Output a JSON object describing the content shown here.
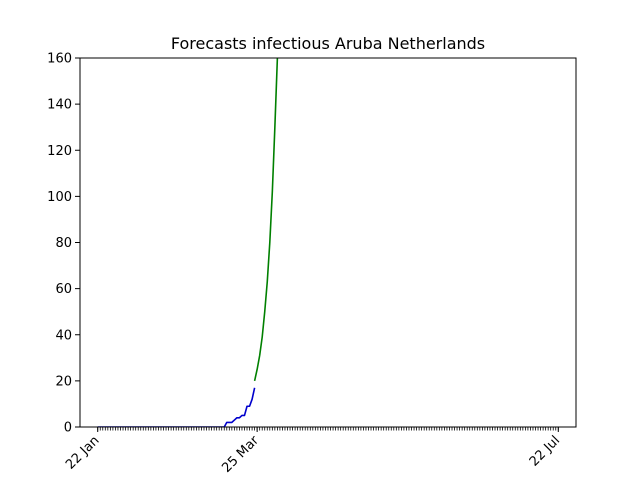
{
  "chart_data": {
    "type": "line",
    "title": "Forecasts infectious Aruba Netherlands",
    "xlabel": "",
    "ylabel": "",
    "x_range": [
      "2020-01-15",
      "2020-07-29"
    ],
    "ylim": [
      0,
      160
    ],
    "y_ticks": [
      0,
      20,
      40,
      60,
      80,
      100,
      120,
      140,
      160
    ],
    "x_tick_labels": [
      {
        "date": "2020-01-22",
        "label": "22 Jan"
      },
      {
        "date": "2020-03-25",
        "label": "25 Mar"
      },
      {
        "date": "2020-07-22",
        "label": "22 Jul"
      }
    ],
    "minor_ticks": {
      "start": "2020-01-22",
      "end": "2020-07-22",
      "step_days": 1
    },
    "grid": false,
    "legend": "none",
    "series": [
      {
        "color": "#0000cc",
        "points": [
          {
            "x": "2020-01-22",
            "y": 0
          },
          {
            "x": "2020-02-20",
            "y": 0
          },
          {
            "x": "2020-03-12",
            "y": 0
          },
          {
            "x": "2020-03-13",
            "y": 2
          },
          {
            "x": "2020-03-15",
            "y": 2
          },
          {
            "x": "2020-03-16",
            "y": 3
          },
          {
            "x": "2020-03-17",
            "y": 4
          },
          {
            "x": "2020-03-18",
            "y": 4
          },
          {
            "x": "2020-03-19",
            "y": 5
          },
          {
            "x": "2020-03-20",
            "y": 5
          },
          {
            "x": "2020-03-21",
            "y": 9
          },
          {
            "x": "2020-03-22",
            "y": 9
          },
          {
            "x": "2020-03-23",
            "y": 12
          },
          {
            "x": "2020-03-24",
            "y": 17
          }
        ]
      },
      {
        "color": "#008000",
        "points": [
          {
            "x": "2020-03-24",
            "y": 20
          },
          {
            "x": "2020-03-25",
            "y": 25
          },
          {
            "x": "2020-03-26",
            "y": 31
          },
          {
            "x": "2020-03-27",
            "y": 39
          },
          {
            "x": "2020-03-28",
            "y": 50
          },
          {
            "x": "2020-03-29",
            "y": 63
          },
          {
            "x": "2020-03-30",
            "y": 80
          },
          {
            "x": "2020-03-31",
            "y": 102
          },
          {
            "x": "2020-04-01",
            "y": 130
          },
          {
            "x": "2020-04-02",
            "y": 160
          }
        ]
      }
    ]
  }
}
